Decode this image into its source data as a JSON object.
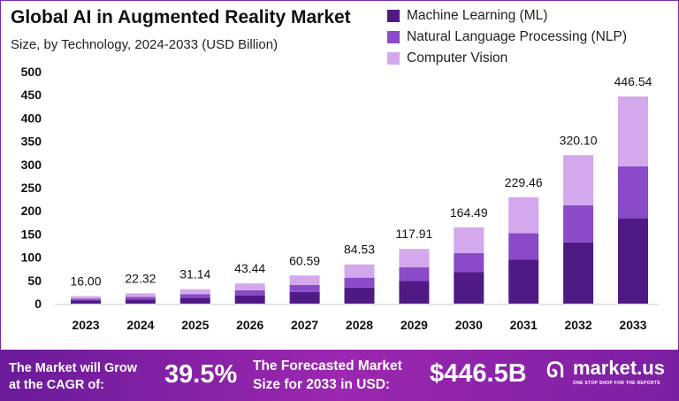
{
  "chart_data": {
    "type": "bar",
    "stacked": true,
    "title": "Global AI in Augmented Reality Market",
    "subtitle": "Size, by Technology, 2024-2033 (USD Billion)",
    "categories": [
      "2023",
      "2024",
      "2025",
      "2026",
      "2027",
      "2028",
      "2029",
      "2030",
      "2031",
      "2032",
      "2033"
    ],
    "series": [
      {
        "name": "Machine Learning (ML)",
        "color": "#4f1a84",
        "values": [
          6.6,
          9.2,
          12.8,
          17.9,
          25.0,
          34.8,
          48.6,
          67.8,
          94.5,
          131.9,
          184.0
        ]
      },
      {
        "name": "Natural Language Processing (NLP)",
        "color": "#8b4bc9",
        "values": [
          4.0,
          5.6,
          7.8,
          10.9,
          15.2,
          21.2,
          29.6,
          41.3,
          57.6,
          80.3,
          112.0
        ]
      },
      {
        "name": "Computer Vision",
        "color": "#d4a8ec",
        "values": [
          5.4,
          7.52,
          10.54,
          14.64,
          20.39,
          28.53,
          39.71,
          55.39,
          77.36,
          107.9,
          150.54
        ]
      }
    ],
    "totals": [
      "16.00",
      "22.32",
      "31.14",
      "43.44",
      "60.59",
      "84.53",
      "117.91",
      "164.49",
      "229.46",
      "320.10",
      "446.54"
    ],
    "ylim": [
      0,
      500
    ],
    "yticks": [
      "0",
      "50",
      "100",
      "150",
      "200",
      "250",
      "300",
      "350",
      "400",
      "450",
      "500"
    ],
    "grid": false,
    "legend_position": "top-right"
  },
  "footer": {
    "cagr_label_1": "The Market will Grow",
    "cagr_label_2": "at the CAGR of:",
    "cagr_value": "39.5%",
    "forecast_label_1": "The Forecasted Market",
    "forecast_label_2": "Size for 2033 in USD:",
    "forecast_value": "$446.5B",
    "brand": "market.us",
    "brand_tagline": "ONE STOP SHOP FOR THE REPORTS"
  }
}
